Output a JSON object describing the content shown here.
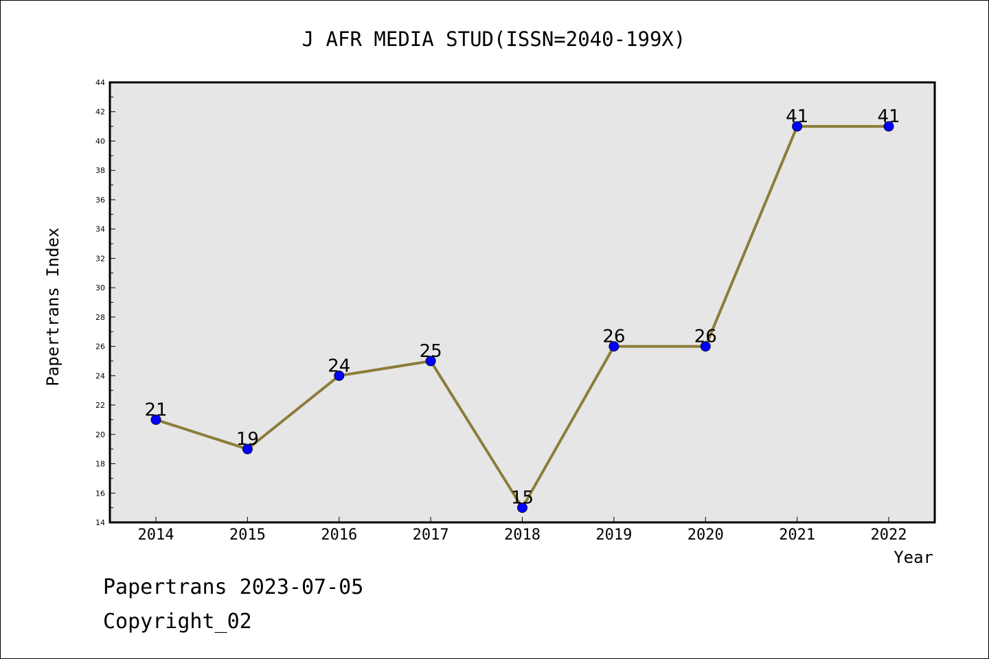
{
  "chart_data": {
    "type": "line",
    "title": "J AFR MEDIA STUD(ISSN=2040-199X)",
    "xlabel": "Year",
    "ylabel": "Papertrans Index",
    "categories": [
      "2014",
      "2015",
      "2016",
      "2017",
      "2018",
      "2019",
      "2020",
      "2021",
      "2022"
    ],
    "series": [
      {
        "values": [
          21,
          19,
          24,
          25,
          15,
          26,
          26,
          41,
          41
        ]
      }
    ],
    "ylim": [
      14,
      44
    ],
    "y_ticks": [
      14,
      16,
      18,
      20,
      22,
      24,
      26,
      28,
      30,
      32,
      34,
      36,
      38,
      40,
      42,
      44
    ],
    "data_labels": true,
    "grid": false,
    "colors": {
      "line": "#8b7d3a",
      "marker": "#0000ff",
      "plot_background": "#e6e6e6"
    }
  },
  "footer": {
    "line1": "Papertrans 2023-07-05",
    "line2": "Copyright_02"
  }
}
